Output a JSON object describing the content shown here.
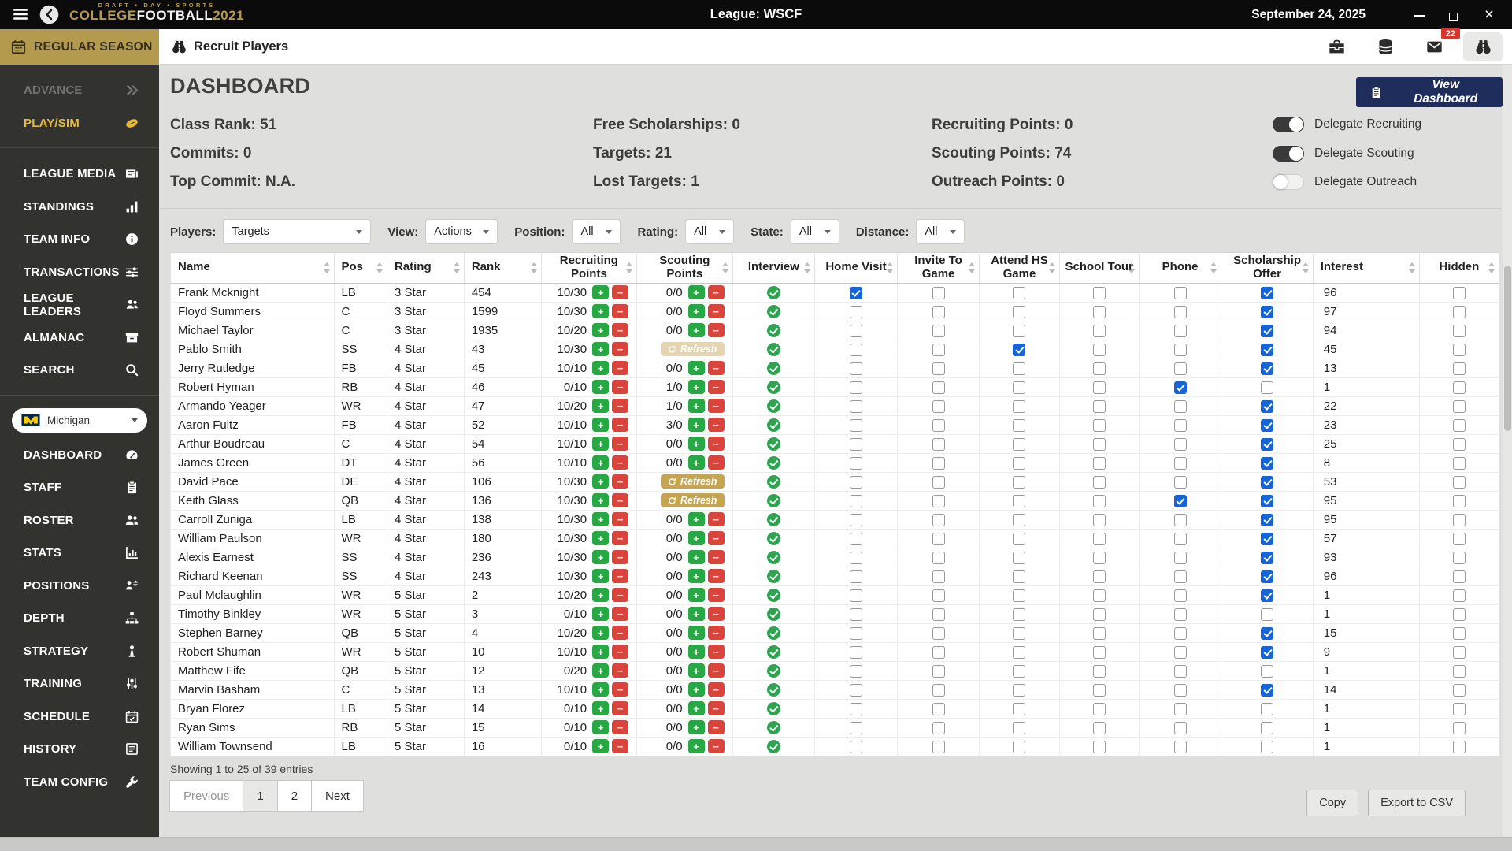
{
  "colors": {
    "gold": "#b49a4f",
    "navy": "#1e2d5c",
    "green": "#28a745",
    "red": "#d9453d",
    "check_blue": "#1665d8",
    "badge_red": "#d9342b",
    "sidebar_bg": "#32332e",
    "active_gold_text": "#e5b93c"
  },
  "titlebar": {
    "tagline": "DRAFT • DAY • SPORTS",
    "brand_gold": "COLLEGE",
    "brand_white": "FOOTBALL",
    "brand_year": "2021",
    "league_title": "League: WSCF",
    "date": "September 24, 2025"
  },
  "sidebar": {
    "season_label": "REGULAR SEASON",
    "primary": [
      {
        "label": "ADVANCE",
        "icon": "chevrons-right",
        "state": "disabled"
      },
      {
        "label": "PLAY/SIM",
        "icon": "football",
        "state": "active"
      }
    ],
    "league": [
      {
        "label": "LEAGUE MEDIA",
        "icon": "newspaper"
      },
      {
        "label": "STANDINGS",
        "icon": "bar-chart"
      },
      {
        "label": "TEAM INFO",
        "icon": "info"
      },
      {
        "label": "TRANSACTIONS",
        "icon": "sliders"
      },
      {
        "label": "LEAGUE LEADERS",
        "icon": "people"
      },
      {
        "label": "ALMANAC",
        "icon": "archive"
      },
      {
        "label": "SEARCH",
        "icon": "search"
      }
    ],
    "team_select": "Michigan",
    "team": [
      {
        "label": "DASHBOARD",
        "icon": "gauge"
      },
      {
        "label": "STAFF",
        "icon": "clipboard"
      },
      {
        "label": "ROSTER",
        "icon": "people"
      },
      {
        "label": "STATS",
        "icon": "chart"
      },
      {
        "label": "POSITIONS",
        "icon": "position-swap"
      },
      {
        "label": "DEPTH",
        "icon": "sitemap"
      },
      {
        "label": "STRATEGY",
        "icon": "chess"
      },
      {
        "label": "TRAINING",
        "icon": "training-sliders"
      },
      {
        "label": "SCHEDULE",
        "icon": "calendar-check"
      },
      {
        "label": "HISTORY",
        "icon": "history"
      },
      {
        "label": "TEAM CONFIG",
        "icon": "wrench"
      }
    ]
  },
  "toolbar": {
    "title": "Recruit Players",
    "icons": [
      {
        "name": "briefcase",
        "active": false,
        "badge": ""
      },
      {
        "name": "database",
        "active": false,
        "badge": ""
      },
      {
        "name": "mail",
        "active": false,
        "badge": "22"
      },
      {
        "name": "binoculars",
        "active": true,
        "badge": ""
      }
    ]
  },
  "main": {
    "title": "DASHBOARD",
    "view_dashboard_label": "View Dashboard",
    "stat_columns": [
      [
        "Class Rank: 51",
        "Commits: 0",
        "Top Commit: N.A."
      ],
      [
        "Free Scholarships: 0",
        "Targets: 21",
        "Lost Targets: 1"
      ],
      [
        "Recruiting Points: 0",
        "Scouting Points: 74",
        "Outreach Points: 0"
      ]
    ],
    "toggles": [
      {
        "label": "Delegate Recruiting",
        "on": true
      },
      {
        "label": "Delegate Scouting",
        "on": true
      },
      {
        "label": "Delegate Outreach",
        "on": false
      }
    ]
  },
  "filters": [
    {
      "label": "Players:",
      "value": "Targets"
    },
    {
      "label": "View:",
      "value": "Actions"
    },
    {
      "label": "Position:",
      "value": "All"
    },
    {
      "label": "Rating:",
      "value": "All"
    },
    {
      "label": "State:",
      "value": "All"
    },
    {
      "label": "Distance:",
      "value": "All"
    }
  ],
  "table": {
    "columns": [
      "Name",
      "Pos",
      "Rating",
      "Rank",
      "Recruiting Points",
      "Scouting Points",
      "Interview",
      "Home Visit",
      "Invite To Game",
      "Attend HS Game",
      "School Tour",
      "Phone",
      "Scholarship Offer",
      "Interest",
      "Hidden"
    ],
    "refresh_label": "Refresh",
    "rows": [
      {
        "name": "Frank Mcknight",
        "pos": "LB",
        "rating": "3 Star",
        "rank": "454",
        "recruiting": "10/30",
        "scouting": "0/0",
        "refresh": "none",
        "interview": true,
        "home_visit": true,
        "invite_to_game": false,
        "attend_hs_game": false,
        "school_tour": false,
        "phone": false,
        "scholarship_offer": true,
        "interest": "96",
        "hidden": false
      },
      {
        "name": "Floyd Summers",
        "pos": "C",
        "rating": "3 Star",
        "rank": "1599",
        "recruiting": "10/30",
        "scouting": "0/0",
        "refresh": "none",
        "interview": true,
        "home_visit": false,
        "invite_to_game": false,
        "attend_hs_game": false,
        "school_tour": false,
        "phone": false,
        "scholarship_offer": true,
        "interest": "97",
        "hidden": false
      },
      {
        "name": "Michael Taylor",
        "pos": "C",
        "rating": "3 Star",
        "rank": "1935",
        "recruiting": "10/20",
        "scouting": "0/0",
        "refresh": "none",
        "interview": true,
        "home_visit": false,
        "invite_to_game": false,
        "attend_hs_game": false,
        "school_tour": false,
        "phone": false,
        "scholarship_offer": true,
        "interest": "94",
        "hidden": false
      },
      {
        "name": "Pablo Smith",
        "pos": "SS",
        "rating": "4 Star",
        "rank": "43",
        "recruiting": "10/30",
        "scouting": "",
        "refresh": "disabled",
        "interview": true,
        "home_visit": false,
        "invite_to_game": false,
        "attend_hs_game": true,
        "school_tour": false,
        "phone": false,
        "scholarship_offer": true,
        "interest": "45",
        "hidden": false
      },
      {
        "name": "Jerry Rutledge",
        "pos": "FB",
        "rating": "4 Star",
        "rank": "45",
        "recruiting": "10/10",
        "scouting": "0/0",
        "refresh": "none",
        "interview": true,
        "home_visit": false,
        "invite_to_game": false,
        "attend_hs_game": false,
        "school_tour": false,
        "phone": false,
        "scholarship_offer": true,
        "interest": "13",
        "hidden": false
      },
      {
        "name": "Robert Hyman",
        "pos": "RB",
        "rating": "4 Star",
        "rank": "46",
        "recruiting": "0/10",
        "scouting": "1/0",
        "refresh": "none",
        "interview": true,
        "home_visit": false,
        "invite_to_game": false,
        "attend_hs_game": false,
        "school_tour": false,
        "phone": true,
        "scholarship_offer": false,
        "interest": "1",
        "hidden": false
      },
      {
        "name": "Armando Yeager",
        "pos": "WR",
        "rating": "4 Star",
        "rank": "47",
        "recruiting": "10/20",
        "scouting": "1/0",
        "refresh": "none",
        "interview": true,
        "home_visit": false,
        "invite_to_game": false,
        "attend_hs_game": false,
        "school_tour": false,
        "phone": false,
        "scholarship_offer": true,
        "interest": "22",
        "hidden": false
      },
      {
        "name": "Aaron Fultz",
        "pos": "FB",
        "rating": "4 Star",
        "rank": "52",
        "recruiting": "10/10",
        "scouting": "3/0",
        "refresh": "none",
        "interview": true,
        "home_visit": false,
        "invite_to_game": false,
        "attend_hs_game": false,
        "school_tour": false,
        "phone": false,
        "scholarship_offer": true,
        "interest": "23",
        "hidden": false
      },
      {
        "name": "Arthur Boudreau",
        "pos": "C",
        "rating": "4 Star",
        "rank": "54",
        "recruiting": "10/10",
        "scouting": "0/0",
        "refresh": "none",
        "interview": true,
        "home_visit": false,
        "invite_to_game": false,
        "attend_hs_game": false,
        "school_tour": false,
        "phone": false,
        "scholarship_offer": true,
        "interest": "25",
        "hidden": false
      },
      {
        "name": "James Green",
        "pos": "DT",
        "rating": "4 Star",
        "rank": "56",
        "recruiting": "10/10",
        "scouting": "0/0",
        "refresh": "none",
        "interview": true,
        "home_visit": false,
        "invite_to_game": false,
        "attend_hs_game": false,
        "school_tour": false,
        "phone": false,
        "scholarship_offer": true,
        "interest": "8",
        "hidden": false
      },
      {
        "name": "David Pace",
        "pos": "DE",
        "rating": "4 Star",
        "rank": "106",
        "recruiting": "10/30",
        "scouting": "",
        "refresh": "active",
        "interview": true,
        "home_visit": false,
        "invite_to_game": false,
        "attend_hs_game": false,
        "school_tour": false,
        "phone": false,
        "scholarship_offer": true,
        "interest": "53",
        "hidden": false
      },
      {
        "name": "Keith Glass",
        "pos": "QB",
        "rating": "4 Star",
        "rank": "136",
        "recruiting": "10/30",
        "scouting": "",
        "refresh": "active",
        "interview": true,
        "home_visit": false,
        "invite_to_game": false,
        "attend_hs_game": false,
        "school_tour": false,
        "phone": true,
        "scholarship_offer": true,
        "interest": "95",
        "hidden": false
      },
      {
        "name": "Carroll Zuniga",
        "pos": "LB",
        "rating": "4 Star",
        "rank": "138",
        "recruiting": "10/30",
        "scouting": "0/0",
        "refresh": "none",
        "interview": true,
        "home_visit": false,
        "invite_to_game": false,
        "attend_hs_game": false,
        "school_tour": false,
        "phone": false,
        "scholarship_offer": true,
        "interest": "95",
        "hidden": false
      },
      {
        "name": "William Paulson",
        "pos": "WR",
        "rating": "4 Star",
        "rank": "180",
        "recruiting": "10/30",
        "scouting": "0/0",
        "refresh": "none",
        "interview": true,
        "home_visit": false,
        "invite_to_game": false,
        "attend_hs_game": false,
        "school_tour": false,
        "phone": false,
        "scholarship_offer": true,
        "interest": "57",
        "hidden": false
      },
      {
        "name": "Alexis Earnest",
        "pos": "SS",
        "rating": "4 Star",
        "rank": "236",
        "recruiting": "10/30",
        "scouting": "0/0",
        "refresh": "none",
        "interview": true,
        "home_visit": false,
        "invite_to_game": false,
        "attend_hs_game": false,
        "school_tour": false,
        "phone": false,
        "scholarship_offer": true,
        "interest": "93",
        "hidden": false
      },
      {
        "name": "Richard Keenan",
        "pos": "SS",
        "rating": "4 Star",
        "rank": "243",
        "recruiting": "10/30",
        "scouting": "0/0",
        "refresh": "none",
        "interview": true,
        "home_visit": false,
        "invite_to_game": false,
        "attend_hs_game": false,
        "school_tour": false,
        "phone": false,
        "scholarship_offer": true,
        "interest": "96",
        "hidden": false
      },
      {
        "name": "Paul Mclaughlin",
        "pos": "WR",
        "rating": "5 Star",
        "rank": "2",
        "recruiting": "10/20",
        "scouting": "0/0",
        "refresh": "none",
        "interview": true,
        "home_visit": false,
        "invite_to_game": false,
        "attend_hs_game": false,
        "school_tour": false,
        "phone": false,
        "scholarship_offer": true,
        "interest": "1",
        "hidden": false
      },
      {
        "name": "Timothy Binkley",
        "pos": "WR",
        "rating": "5 Star",
        "rank": "3",
        "recruiting": "0/10",
        "scouting": "0/0",
        "refresh": "none",
        "interview": true,
        "home_visit": false,
        "invite_to_game": false,
        "attend_hs_game": false,
        "school_tour": false,
        "phone": false,
        "scholarship_offer": false,
        "interest": "1",
        "hidden": false
      },
      {
        "name": "Stephen Barney",
        "pos": "QB",
        "rating": "5 Star",
        "rank": "4",
        "recruiting": "10/20",
        "scouting": "0/0",
        "refresh": "none",
        "interview": true,
        "home_visit": false,
        "invite_to_game": false,
        "attend_hs_game": false,
        "school_tour": false,
        "phone": false,
        "scholarship_offer": true,
        "interest": "15",
        "hidden": false
      },
      {
        "name": "Robert Shuman",
        "pos": "WR",
        "rating": "5 Star",
        "rank": "10",
        "recruiting": "10/10",
        "scouting": "0/0",
        "refresh": "none",
        "interview": true,
        "home_visit": false,
        "invite_to_game": false,
        "attend_hs_game": false,
        "school_tour": false,
        "phone": false,
        "scholarship_offer": true,
        "interest": "9",
        "hidden": false
      },
      {
        "name": "Matthew Fife",
        "pos": "QB",
        "rating": "5 Star",
        "rank": "12",
        "recruiting": "0/20",
        "scouting": "0/0",
        "refresh": "none",
        "interview": true,
        "home_visit": false,
        "invite_to_game": false,
        "attend_hs_game": false,
        "school_tour": false,
        "phone": false,
        "scholarship_offer": false,
        "interest": "1",
        "hidden": false
      },
      {
        "name": "Marvin Basham",
        "pos": "C",
        "rating": "5 Star",
        "rank": "13",
        "recruiting": "10/10",
        "scouting": "0/0",
        "refresh": "none",
        "interview": true,
        "home_visit": false,
        "invite_to_game": false,
        "attend_hs_game": false,
        "school_tour": false,
        "phone": false,
        "scholarship_offer": true,
        "interest": "14",
        "hidden": false
      },
      {
        "name": "Bryan Florez",
        "pos": "LB",
        "rating": "5 Star",
        "rank": "14",
        "recruiting": "0/10",
        "scouting": "0/0",
        "refresh": "none",
        "interview": true,
        "home_visit": false,
        "invite_to_game": false,
        "attend_hs_game": false,
        "school_tour": false,
        "phone": false,
        "scholarship_offer": false,
        "interest": "1",
        "hidden": false
      },
      {
        "name": "Ryan Sims",
        "pos": "RB",
        "rating": "5 Star",
        "rank": "15",
        "recruiting": "0/10",
        "scouting": "0/0",
        "refresh": "none",
        "interview": true,
        "home_visit": false,
        "invite_to_game": false,
        "attend_hs_game": false,
        "school_tour": false,
        "phone": false,
        "scholarship_offer": false,
        "interest": "1",
        "hidden": false
      },
      {
        "name": "William Townsend",
        "pos": "LB",
        "rating": "5 Star",
        "rank": "16",
        "recruiting": "0/10",
        "scouting": "0/0",
        "refresh": "none",
        "interview": true,
        "home_visit": false,
        "invite_to_game": false,
        "attend_hs_game": false,
        "school_tour": false,
        "phone": false,
        "scholarship_offer": false,
        "interest": "1",
        "hidden": false
      }
    ],
    "footer": "Showing 1 to 25 of 39 entries",
    "pagination": [
      {
        "label": "Previous",
        "state": "disabled"
      },
      {
        "label": "1",
        "state": "active"
      },
      {
        "label": "2",
        "state": ""
      },
      {
        "label": "Next",
        "state": ""
      }
    ],
    "actions": [
      "Copy",
      "Export to CSV"
    ]
  }
}
